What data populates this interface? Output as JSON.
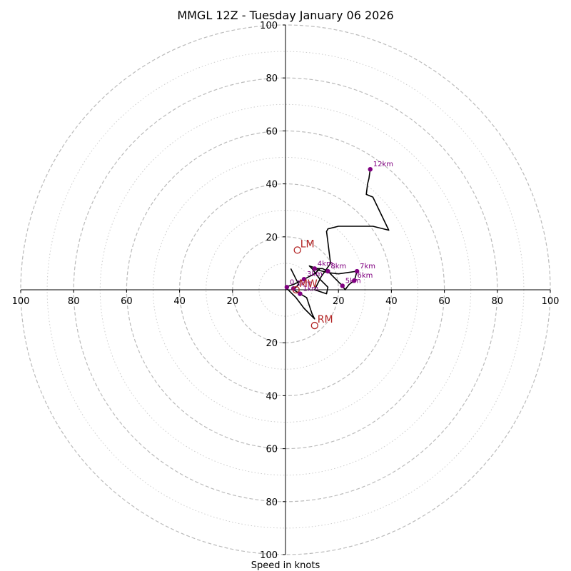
{
  "chart_data": {
    "type": "hodograph",
    "title": "MMGL 12Z - Tuesday January 06 2026",
    "xlabel": "Speed in knots",
    "range": [
      -100,
      100
    ],
    "rings_major": [
      20,
      40,
      60,
      80,
      100
    ],
    "rings_minor": [
      10,
      30,
      50,
      70,
      90
    ],
    "tick_labels": [
      "100",
      "80",
      "60",
      "40",
      "20",
      "20",
      "40",
      "60",
      "80",
      "100"
    ],
    "colors": {
      "profile": "#000000",
      "height_points": "#800080",
      "motion": "#b22222",
      "ring": "#bbbbbb"
    },
    "profile": [
      [
        2,
        8
      ],
      [
        4,
        4
      ],
      [
        5,
        2
      ],
      [
        3,
        0
      ],
      [
        8,
        -3
      ],
      [
        10,
        -9
      ],
      [
        11,
        -11
      ],
      [
        7,
        -7
      ],
      [
        4,
        -3
      ],
      [
        2,
        -1
      ],
      [
        0,
        1
      ],
      [
        3,
        2
      ],
      [
        5,
        3
      ],
      [
        7,
        4
      ],
      [
        9,
        5
      ],
      [
        11,
        6
      ],
      [
        12,
        7
      ],
      [
        13,
        8
      ],
      [
        10,
        8
      ],
      [
        14,
        7
      ],
      [
        16,
        6.5
      ],
      [
        20,
        6
      ],
      [
        27,
        7
      ],
      [
        26,
        3.5
      ],
      [
        24,
        2
      ],
      [
        22.5,
        0
      ],
      [
        21.5,
        1.5
      ],
      [
        20,
        3
      ],
      [
        16,
        7
      ],
      [
        14,
        8
      ],
      [
        12,
        8
      ],
      [
        9,
        9
      ],
      [
        10,
        8
      ],
      [
        13,
        4
      ],
      [
        16,
        1
      ],
      [
        15.5,
        -1.5
      ],
      [
        11,
        0
      ],
      [
        13.5,
        5
      ],
      [
        17,
        10
      ],
      [
        16,
        18
      ],
      [
        15.5,
        22
      ],
      [
        16,
        23
      ],
      [
        20,
        24
      ],
      [
        33,
        24
      ],
      [
        39,
        22.5
      ],
      [
        33,
        35
      ],
      [
        30.5,
        36
      ],
      [
        31,
        40
      ],
      [
        31.5,
        42
      ],
      [
        32,
        45.5
      ]
    ],
    "heights": [
      {
        "label": "0",
        "u": 0.5,
        "v": 1
      },
      {
        "label": "1km",
        "u": 5.5,
        "v": -1.5
      },
      {
        "label": "2km",
        "u": 3,
        "v": 0.5
      },
      {
        "label": "3km",
        "u": 7,
        "v": 4
      },
      {
        "label": "4km",
        "u": 11,
        "v": 8
      },
      {
        "label": "5km",
        "u": 21.5,
        "v": 1.5
      },
      {
        "label": "6km",
        "u": 26,
        "v": 3.5
      },
      {
        "label": "7km",
        "u": 27,
        "v": 7
      },
      {
        "label": "8km",
        "u": 16,
        "v": 7
      },
      {
        "label": "12km",
        "u": 32,
        "v": 45.5
      }
    ],
    "storm_motion": [
      {
        "label": "LM",
        "u": 4.5,
        "v": 15
      },
      {
        "label": "MW",
        "u": 4,
        "v": 0
      },
      {
        "label": "RM",
        "u": 11,
        "v": -13.5
      }
    ]
  }
}
